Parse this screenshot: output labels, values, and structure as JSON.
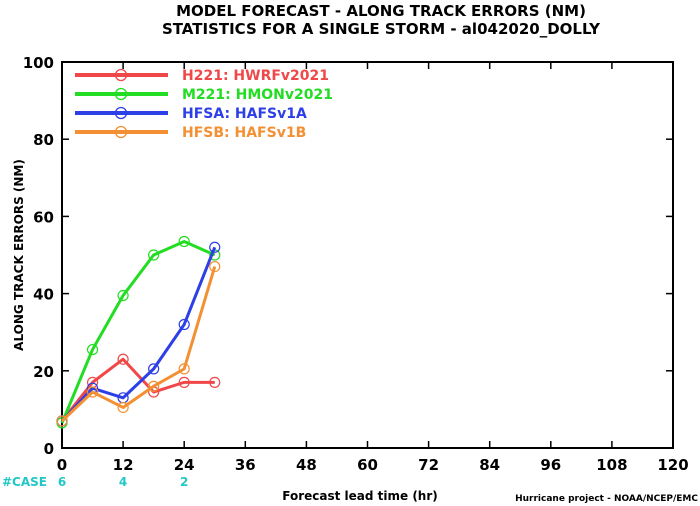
{
  "title_line1": "MODEL FORECAST - ALONG TRACK ERRORS (NM)",
  "title_line2": "STATISTICS FOR A SINGLE STORM - al042020_DOLLY",
  "credit": "Hurricane project - NOAA/NCEP/EMC",
  "case_label": "#CASE",
  "colors": {
    "case": "#22c7c7"
  },
  "chart_data": {
    "type": "line",
    "xlabel": "Forecast lead time (hr)",
    "ylabel": "ALONG TRACK ERRORS (NM)",
    "xlim": [
      0,
      120
    ],
    "ylim": [
      0,
      100
    ],
    "xticks": [
      0,
      12,
      24,
      36,
      48,
      60,
      72,
      84,
      96,
      108,
      120
    ],
    "yticks": [
      0,
      20,
      40,
      60,
      80,
      100
    ],
    "grid": false,
    "legend_position": "top-left",
    "x": [
      0,
      6,
      12,
      18,
      24,
      30
    ],
    "series": [
      {
        "name": "H221: HWRFv2021",
        "color": "#f04848",
        "values": [
          7,
          17,
          23,
          14.5,
          17,
          17
        ]
      },
      {
        "name": "M221: HMONv2021",
        "color": "#22dd22",
        "values": [
          6.5,
          25.5,
          39.5,
          50,
          53.5,
          50
        ]
      },
      {
        "name": "HFSA: HAFSv1A",
        "color": "#2d3fe6",
        "values": [
          7,
          15.5,
          13,
          20.5,
          32,
          52
        ]
      },
      {
        "name": "HFSB: HAFSv1B",
        "color": "#f39033",
        "values": [
          7,
          14.5,
          10.5,
          16,
          20.5,
          47
        ]
      }
    ],
    "cases": [
      {
        "x": 0,
        "count": "6"
      },
      {
        "x": 12,
        "count": "4"
      },
      {
        "x": 24,
        "count": "2"
      }
    ]
  }
}
